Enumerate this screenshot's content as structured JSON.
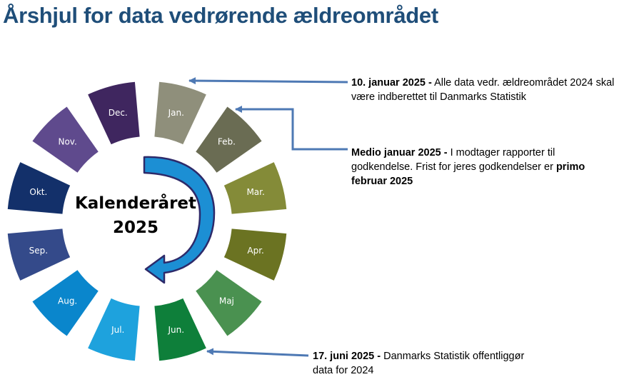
{
  "title": "Årshjul for data vedrørende ældreområdet",
  "center": {
    "line1": "Kalenderåret",
    "line2": "2025"
  },
  "months": [
    {
      "label": "Jan.",
      "color": "#8f8f7b",
      "text_color": "#ffffff"
    },
    {
      "label": "Feb.",
      "color": "#6a6c53",
      "text_color": "#ffffff"
    },
    {
      "label": "Mar.",
      "color": "#848b38",
      "text_color": "#ffffff"
    },
    {
      "label": "Apr.",
      "color": "#6b7322",
      "text_color": "#ffffff"
    },
    {
      "label": "Maj",
      "color": "#4a9150",
      "text_color": "#ffffff"
    },
    {
      "label": "Jun.",
      "color": "#0e7f3a",
      "text_color": "#ffffff"
    },
    {
      "label": "Jul.",
      "color": "#1ea2dd",
      "text_color": "#ffffff"
    },
    {
      "label": "Aug.",
      "color": "#0a86cc",
      "text_color": "#ffffff"
    },
    {
      "label": "Sep.",
      "color": "#344a8a",
      "text_color": "#ffffff"
    },
    {
      "label": "Okt.",
      "color": "#13306a",
      "text_color": "#ffffff"
    },
    {
      "label": "Nov.",
      "color": "#5f4a8d",
      "text_color": "#ffffff"
    },
    {
      "label": "Dec.",
      "color": "#3f265f",
      "text_color": "#ffffff"
    }
  ],
  "notes": {
    "jan10": {
      "bold": "10. januar 2025 -",
      "text": " Alle data vedr. ældreområdet 2024 skal være indberettet til Danmarks Statistik"
    },
    "medio": {
      "bold": "Medio januar 2025 -",
      "text": " I modtager rapporter til godkendelse. Frist for jeres godkendelser er ",
      "bold2": "primo februar 2025"
    },
    "jun17": {
      "bold": "17. juni 2025 -",
      "text": " Danmarks Statistik offentliggør data for 2024"
    }
  },
  "colors": {
    "title": "#1f4e79",
    "arrow_line": "#4e79b4",
    "swirl_fill": "#1c8fd4",
    "swirl_outline": "#2d2a6a"
  }
}
